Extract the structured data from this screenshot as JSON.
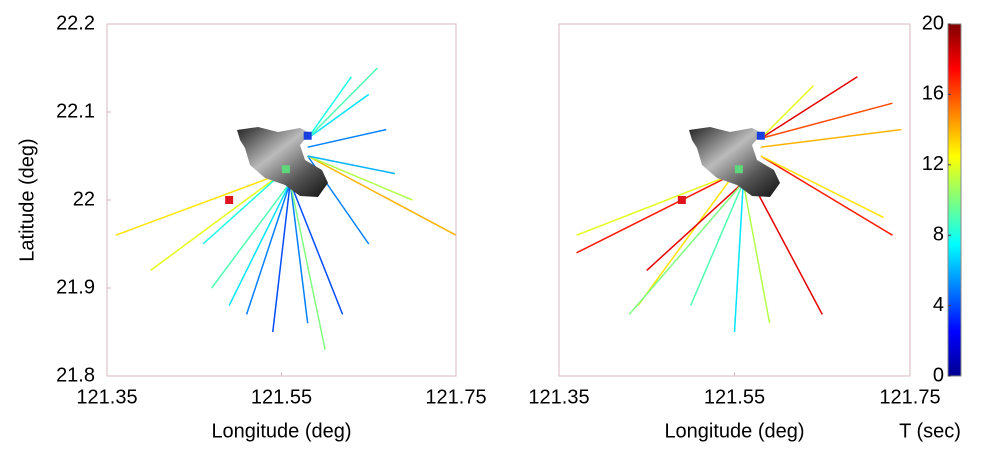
{
  "chart_data": [
    {
      "type": "ray-map",
      "xlabel": "Longitude (deg)",
      "ylabel": "Latitude (deg)",
      "xlim": [
        121.35,
        121.75
      ],
      "ylim": [
        21.8,
        22.2
      ],
      "xticks": [
        121.35,
        121.55,
        121.75
      ],
      "yticks": [
        21.8,
        21.9,
        22,
        22.1,
        22.2
      ],
      "clim": [
        0,
        20
      ],
      "rays": [
        {
          "x": [
            121.55,
            121.36
          ],
          "y": [
            22.03,
            21.96
          ],
          "t": 13
        },
        {
          "x": [
            121.55,
            121.4
          ],
          "y": [
            22.03,
            21.92
          ],
          "t": 12
        },
        {
          "x": [
            121.55,
            121.46
          ],
          "y": [
            22.03,
            21.95
          ],
          "t": 8
        },
        {
          "x": [
            121.56,
            121.47
          ],
          "y": [
            22.02,
            21.9
          ],
          "t": 9
        },
        {
          "x": [
            121.56,
            121.49
          ],
          "y": [
            22.02,
            21.88
          ],
          "t": 7
        },
        {
          "x": [
            121.56,
            121.51
          ],
          "y": [
            22.02,
            21.87
          ],
          "t": 5
        },
        {
          "x": [
            121.56,
            121.54
          ],
          "y": [
            22.02,
            21.85
          ],
          "t": 4
        },
        {
          "x": [
            121.56,
            121.58
          ],
          "y": [
            22.02,
            21.86
          ],
          "t": 5
        },
        {
          "x": [
            121.56,
            121.6
          ],
          "y": [
            22.02,
            21.83
          ],
          "t": 10
        },
        {
          "x": [
            121.56,
            121.62
          ],
          "y": [
            22.02,
            21.87
          ],
          "t": 4
        },
        {
          "x": [
            121.58,
            121.65
          ],
          "y": [
            22.05,
            21.95
          ],
          "t": 5
        },
        {
          "x": [
            121.58,
            121.75
          ],
          "y": [
            22.05,
            21.96
          ],
          "t": 14
        },
        {
          "x": [
            121.58,
            121.7
          ],
          "y": [
            22.05,
            22.0
          ],
          "t": 11
        },
        {
          "x": [
            121.58,
            121.68
          ],
          "y": [
            22.05,
            22.03
          ],
          "t": 6
        },
        {
          "x": [
            121.58,
            121.67
          ],
          "y": [
            22.06,
            22.08
          ],
          "t": 5
        },
        {
          "x": [
            121.58,
            121.65
          ],
          "y": [
            22.07,
            22.12
          ],
          "t": 7
        },
        {
          "x": [
            121.58,
            121.63
          ],
          "y": [
            22.07,
            22.14
          ],
          "t": 8
        },
        {
          "x": [
            121.58,
            121.66
          ],
          "y": [
            22.07,
            22.15
          ],
          "t": 9
        }
      ],
      "points": [
        {
          "x": 121.49,
          "y": 22.0,
          "color": "#e0141e"
        },
        {
          "x": 121.555,
          "y": 22.035,
          "color": "#5ed67a"
        },
        {
          "x": 121.58,
          "y": 22.073,
          "color": "#1a3fe0"
        }
      ]
    },
    {
      "type": "ray-map",
      "xlabel": "Longitude (deg)",
      "xlim": [
        121.35,
        121.75
      ],
      "ylim": [
        21.8,
        22.2
      ],
      "xticks": [
        121.35,
        121.55,
        121.75
      ],
      "clim": [
        0,
        20
      ],
      "rays": [
        {
          "x": [
            121.55,
            121.37
          ],
          "y": [
            22.03,
            21.94
          ],
          "t": 17
        },
        {
          "x": [
            121.55,
            121.37
          ],
          "y": [
            22.03,
            21.96
          ],
          "t": 12
        },
        {
          "x": [
            121.55,
            121.44
          ],
          "y": [
            22.03,
            21.88
          ],
          "t": 13
        },
        {
          "x": [
            121.56,
            121.45
          ],
          "y": [
            22.02,
            21.92
          ],
          "t": 18
        },
        {
          "x": [
            121.56,
            121.43
          ],
          "y": [
            22.02,
            21.87
          ],
          "t": 10
        },
        {
          "x": [
            121.56,
            121.5
          ],
          "y": [
            22.02,
            21.88
          ],
          "t": 9
        },
        {
          "x": [
            121.56,
            121.55
          ],
          "y": [
            22.02,
            21.85
          ],
          "t": 7
        },
        {
          "x": [
            121.56,
            121.59
          ],
          "y": [
            22.02,
            21.86
          ],
          "t": 11
        },
        {
          "x": [
            121.57,
            121.65
          ],
          "y": [
            22.02,
            21.87
          ],
          "t": 18
        },
        {
          "x": [
            121.58,
            121.73
          ],
          "y": [
            22.05,
            21.96
          ],
          "t": 17
        },
        {
          "x": [
            121.58,
            121.72
          ],
          "y": [
            22.05,
            21.98
          ],
          "t": 13
        },
        {
          "x": [
            121.58,
            121.74
          ],
          "y": [
            22.06,
            22.08
          ],
          "t": 14
        },
        {
          "x": [
            121.58,
            121.73
          ],
          "y": [
            22.07,
            22.11
          ],
          "t": 16
        },
        {
          "x": [
            121.58,
            121.69
          ],
          "y": [
            22.07,
            22.14
          ],
          "t": 18
        },
        {
          "x": [
            121.58,
            121.64
          ],
          "y": [
            22.07,
            22.13
          ],
          "t": 12
        }
      ],
      "points": [
        {
          "x": 121.49,
          "y": 22.0,
          "color": "#e0141e"
        },
        {
          "x": 121.555,
          "y": 22.035,
          "color": "#5ed67a"
        },
        {
          "x": 121.58,
          "y": 22.073,
          "color": "#1a3fe0"
        }
      ],
      "colorbar": {
        "label": "T (sec)",
        "lim": [
          0,
          20
        ],
        "ticks": [
          0,
          4,
          8,
          12,
          16,
          20
        ]
      }
    }
  ]
}
